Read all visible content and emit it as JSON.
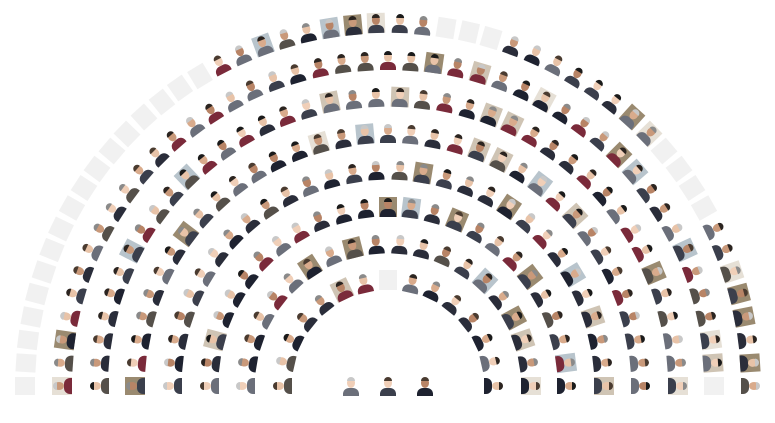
{
  "chart_data": {
    "type": "hemicycle",
    "title": "",
    "rings": [
      {
        "seats": 15,
        "empty": [
          7
        ]
      },
      {
        "seats": 20,
        "empty": []
      },
      {
        "seats": 25,
        "empty": []
      },
      {
        "seats": 30,
        "empty": []
      },
      {
        "seats": 35,
        "empty": []
      },
      {
        "seats": 40,
        "empty": []
      },
      {
        "seats": 45,
        "empty": [
          44
        ]
      },
      {
        "seats": 50,
        "empty": [
          0,
          1,
          2,
          3,
          4,
          5,
          6,
          7,
          8,
          9,
          10,
          11,
          12,
          13,
          14,
          15,
          16,
          27,
          28,
          29,
          38,
          39,
          40,
          41
        ]
      }
    ],
    "presidium_seats": 3,
    "colors": {
      "skin": [
        "#e8c3a8",
        "#d9ab8c",
        "#c9997a",
        "#f0cfb8",
        "#b88466"
      ],
      "jacket": [
        "#2a2d3a",
        "#3b3f4c",
        "#1e2230",
        "#55504a",
        "#6b6f7a",
        "#7a2a3a"
      ],
      "hair": [
        "#2b2420",
        "#4a3b30",
        "#8a8a8a",
        "#1a1a1a",
        "#c8c8c8"
      ],
      "empty_seat": "#f1f1f1"
    }
  }
}
